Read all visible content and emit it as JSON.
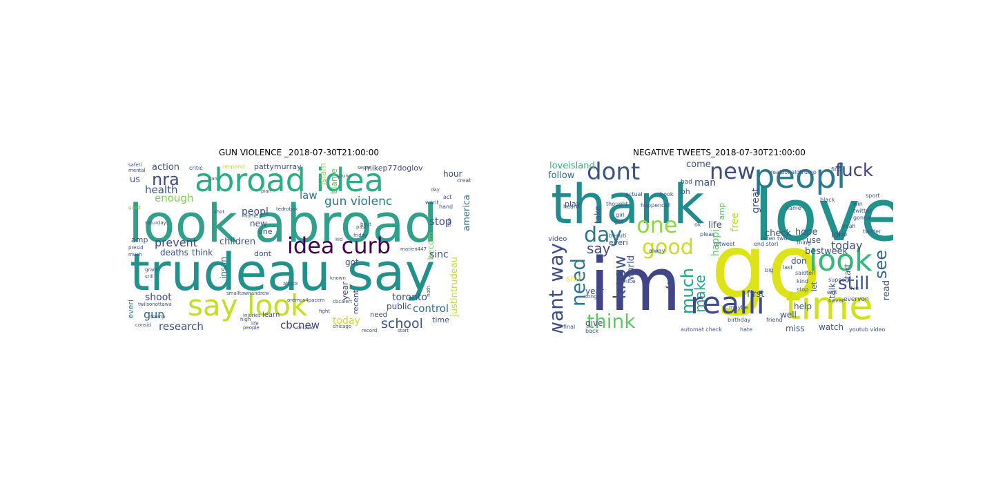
{
  "panels": [
    {
      "title": "GUN VIOLENCE _2018-07-30T21:00:00",
      "words": [
        {
          "text": "look abroad"
        },
        {
          "text": "trudeau say"
        },
        {
          "text": "abroad idea"
        },
        {
          "text": "say look"
        },
        {
          "text": "idea curb"
        },
        {
          "text": "gun violenc"
        },
        {
          "text": "nra"
        },
        {
          "text": "prevent"
        },
        {
          "text": "cbcnew"
        },
        {
          "text": "school"
        },
        {
          "text": "research"
        },
        {
          "text": "health"
        },
        {
          "text": "enough"
        },
        {
          "text": "law"
        },
        {
          "text": "stop"
        },
        {
          "text": "control"
        },
        {
          "text": "toronto"
        },
        {
          "text": "shoot"
        },
        {
          "text": "gun"
        },
        {
          "text": "children"
        },
        {
          "text": "peopl"
        },
        {
          "text": "today"
        },
        {
          "text": "public"
        },
        {
          "text": "action"
        },
        {
          "text": "us"
        },
        {
          "text": "becom"
        },
        {
          "text": "america"
        },
        {
          "text": "justintrudeau"
        },
        {
          "text": "sinc"
        },
        {
          "text": "islam"
        },
        {
          "text": "blame"
        },
        {
          "text": "hour"
        },
        {
          "text": "deaths"
        },
        {
          "text": "think"
        },
        {
          "text": "insan"
        },
        {
          "text": "got"
        },
        {
          "text": "recent"
        },
        {
          "text": "year"
        },
        {
          "text": "everi"
        },
        {
          "text": "pattymurray"
        },
        {
          "text": "mikep77doglov"
        },
        {
          "text": "new"
        },
        {
          "text": "one"
        },
        {
          "text": "dont"
        },
        {
          "text": "amp"
        },
        {
          "text": "time"
        },
        {
          "text": "need"
        },
        {
          "text": "learn"
        },
        {
          "text": "critic"
        },
        {
          "text": "respond"
        },
        {
          "text": "safeti"
        },
        {
          "text": "mental"
        },
        {
          "text": "good"
        },
        {
          "text": "twilsonottawa"
        },
        {
          "text": "consid"
        },
        {
          "text": "trump"
        },
        {
          "text": "smalltownandrew"
        },
        {
          "text": "oremus4pacem"
        },
        {
          "text": "ontario"
        },
        {
          "text": "people"
        },
        {
          "text": "marien447"
        },
        {
          "text": "want"
        },
        {
          "text": "creat"
        },
        {
          "text": "hand"
        },
        {
          "text": "act"
        },
        {
          "text": "tedrobak"
        },
        {
          "text": "friday"
        },
        {
          "text": "past"
        },
        {
          "text": "known"
        },
        {
          "text": "fight"
        },
        {
          "text": "injuries"
        },
        {
          "text": "life"
        },
        {
          "text": "high"
        },
        {
          "text": "attack"
        },
        {
          "text": "chicago"
        },
        {
          "text": "start"
        },
        {
          "text": "record"
        },
        {
          "text": "cbcalert"
        },
        {
          "text": "presid"
        },
        {
          "text": "saturday"
        },
        {
          "text": "grant"
        },
        {
          "text": "still"
        },
        {
          "text": "much"
        },
        {
          "text": "van"
        },
        {
          "text": "shot"
        },
        {
          "text": "pian"
        },
        {
          "text": "home"
        },
        {
          "text": "separ"
        },
        {
          "text": "sound"
        },
        {
          "text": "bout"
        },
        {
          "text": "two"
        },
        {
          "text": "noth"
        },
        {
          "text": "day"
        },
        {
          "text": "kid"
        }
      ]
    },
    {
      "title": "NEGATIVE TWEETS_2018-07-30T21:00:00",
      "words": [
        {
          "text": "love"
        },
        {
          "text": "thank"
        },
        {
          "text": "go"
        },
        {
          "text": "im"
        },
        {
          "text": "time"
        },
        {
          "text": "peopl"
        },
        {
          "text": "realli"
        },
        {
          "text": "look"
        },
        {
          "text": "dont"
        },
        {
          "text": "new"
        },
        {
          "text": "one"
        },
        {
          "text": "good"
        },
        {
          "text": "day"
        },
        {
          "text": "want"
        },
        {
          "text": "way"
        },
        {
          "text": "need"
        },
        {
          "text": "think"
        },
        {
          "text": "know"
        },
        {
          "text": "much"
        },
        {
          "text": "make"
        },
        {
          "text": "fuck"
        },
        {
          "text": "still"
        },
        {
          "text": "see"
        },
        {
          "text": "say"
        },
        {
          "text": "today"
        },
        {
          "text": "loveisland"
        },
        {
          "text": "follow"
        },
        {
          "text": "come"
        },
        {
          "text": "life"
        },
        {
          "text": "happi"
        },
        {
          "text": "check"
        },
        {
          "text": "hope"
        },
        {
          "text": "use"
        },
        {
          "text": "lol"
        },
        {
          "text": "great"
        },
        {
          "text": "free"
        },
        {
          "text": "amp"
        },
        {
          "text": "best"
        },
        {
          "text": "week"
        },
        {
          "text": "don"
        },
        {
          "text": "start"
        },
        {
          "text": "read"
        },
        {
          "text": "first"
        },
        {
          "text": "help"
        },
        {
          "text": "talk"
        },
        {
          "text": "watch"
        },
        {
          "text": "miss"
        },
        {
          "text": "well"
        },
        {
          "text": "give"
        },
        {
          "text": "shit"
        },
        {
          "text": "year"
        },
        {
          "text": "feel"
        },
        {
          "text": "world"
        },
        {
          "text": "take"
        },
        {
          "text": "play"
        },
        {
          "text": "everi"
        },
        {
          "text": "video"
        },
        {
          "text": "man"
        },
        {
          "text": "bad"
        },
        {
          "text": "oh"
        },
        {
          "text": "let"
        },
        {
          "text": "everyon"
        },
        {
          "text": "youtub video"
        },
        {
          "text": "automat check"
        },
        {
          "text": "hate"
        },
        {
          "text": "realdonaldtrump"
        },
        {
          "text": "actual"
        },
        {
          "text": "book"
        },
        {
          "text": "thought"
        },
        {
          "text": "call"
        },
        {
          "text": "happen"
        },
        {
          "text": "beauti"
        },
        {
          "text": "alway"
        },
        {
          "text": "girl"
        },
        {
          "text": "got"
        },
        {
          "text": "end stori"
        },
        {
          "text": "listen"
        },
        {
          "text": "retweet"
        },
        {
          "text": "said"
        },
        {
          "text": "last"
        },
        {
          "text": "support"
        },
        {
          "text": "yeah"
        },
        {
          "text": "stop"
        },
        {
          "text": "live"
        },
        {
          "text": "top"
        },
        {
          "text": "kind"
        },
        {
          "text": "tell"
        },
        {
          "text": "name"
        },
        {
          "text": "friend"
        },
        {
          "text": "birthday"
        },
        {
          "text": "nice"
        },
        {
          "text": "back"
        },
        {
          "text": "final"
        },
        {
          "text": "win"
        },
        {
          "text": "thing"
        },
        {
          "text": "pleas"
        },
        {
          "text": "ok"
        },
        {
          "text": "two"
        },
        {
          "text": "gonna"
        },
        {
          "text": "twitter"
        },
        {
          "text": "black"
        },
        {
          "text": "sport"
        },
        {
          "text": "twitter"
        },
        {
          "text": "exit"
        },
        {
          "text": "never"
        },
        {
          "text": "song"
        },
        {
          "text": "maybe"
        },
        {
          "text": "big"
        },
        {
          "text": "heart"
        },
        {
          "text": "find"
        }
      ]
    }
  ]
}
